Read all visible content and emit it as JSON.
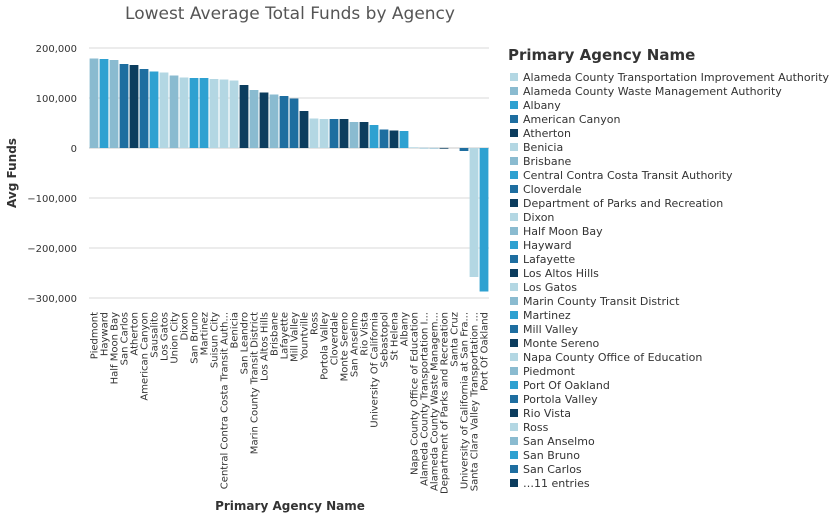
{
  "chart_data": {
    "type": "bar",
    "title": "Lowest Average Total Funds by Agency",
    "xlabel": "Primary Agency Name",
    "ylabel": "Avg Funds",
    "ylim": [
      -300000,
      200000
    ],
    "yticks": [
      200000,
      100000,
      0,
      -100000,
      -200000,
      -300000
    ],
    "ytick_labels": [
      "200,000",
      "100,000",
      "0",
      "−100,000",
      "−200,000",
      "−300,000"
    ],
    "grid": true,
    "categories": [
      "Piedmont",
      "Hayward",
      "Half Moon Bay",
      "San Carlos",
      "Atherton",
      "American Canyon",
      "Sausalito",
      "Los Gatos",
      "Union City",
      "Dixon",
      "San Bruno",
      "Martinez",
      "Suisun City",
      "Central Contra Costa Transit Auth...",
      "Benicia",
      "San Leandro",
      "Marin County Transit District",
      "Los Altos Hills",
      "Brisbane",
      "Lafayette",
      "Mill Valley",
      "Yountville",
      "Ross",
      "Portola Valley",
      "Cloverdale",
      "Monte Sereno",
      "San Anselmo",
      "Rio Vista",
      "University Of California",
      "Sebastopol",
      "St Helena",
      "Albany",
      "Napa County Office of Education",
      "Alameda County Transportation I...",
      "Alameda County Waste Managem...",
      "Department of Parks and Recreation",
      "Santa Cruz",
      "University of California at San Fra...",
      "Santa Clara Valley Transportation ...",
      "Port Of Oakland"
    ],
    "values": [
      179000,
      178000,
      176000,
      168000,
      166000,
      158000,
      153000,
      151000,
      145000,
      141000,
      140000,
      140000,
      138000,
      137000,
      135000,
      126000,
      116000,
      111000,
      107000,
      104000,
      99000,
      74000,
      59000,
      58000,
      58000,
      58000,
      52000,
      52000,
      46000,
      37000,
      35000,
      34000,
      1500,
      500,
      300,
      200,
      0,
      -6000,
      -258000,
      -287000
    ],
    "bar_colors": [
      "#8abbd0",
      "#2ea1d1",
      "#8abbd0",
      "#1e6ea0",
      "#0c3d5e",
      "#1e6ea0",
      "#2ea1d1",
      "#b3d7e3",
      "#8abbd0",
      "#b3d7e3",
      "#2ea1d1",
      "#2ea1d1",
      "#b3d7e3",
      "#b3d7e3",
      "#b3d7e3",
      "#0c3d5e",
      "#8abbd0",
      "#0c3d5e",
      "#8abbd0",
      "#1e6ea0",
      "#1e6ea0",
      "#0c3d5e",
      "#b3d7e3",
      "#b3d7e3",
      "#1e6ea0",
      "#0c3d5e",
      "#8abbd0",
      "#0c3d5e",
      "#2ea1d1",
      "#1e6ea0",
      "#0c3d5e",
      "#2ea1d1",
      "#b3d7e3",
      "#8abbd0",
      "#8abbd0",
      "#0c3d5e",
      "#b3d7e3",
      "#1e6ea0",
      "#b3d7e3",
      "#2ea1d1"
    ],
    "legend": {
      "title": "Primary Agency Name",
      "placement": "right",
      "items": [
        {
          "label": "Alameda County Transportation Improvement Authority",
          "color": "#b3d7e3"
        },
        {
          "label": "Alameda County Waste Management Authority",
          "color": "#8abbd0"
        },
        {
          "label": "Albany",
          "color": "#2ea1d1"
        },
        {
          "label": "American Canyon",
          "color": "#1e6ea0"
        },
        {
          "label": "Atherton",
          "color": "#0c3d5e"
        },
        {
          "label": "Benicia",
          "color": "#b3d7e3"
        },
        {
          "label": "Brisbane",
          "color": "#8abbd0"
        },
        {
          "label": "Central Contra Costa Transit Authority",
          "color": "#2ea1d1"
        },
        {
          "label": "Cloverdale",
          "color": "#1e6ea0"
        },
        {
          "label": "Department of Parks and Recreation",
          "color": "#0c3d5e"
        },
        {
          "label": "Dixon",
          "color": "#b3d7e3"
        },
        {
          "label": "Half Moon Bay",
          "color": "#8abbd0"
        },
        {
          "label": "Hayward",
          "color": "#2ea1d1"
        },
        {
          "label": "Lafayette",
          "color": "#1e6ea0"
        },
        {
          "label": "Los Altos Hills",
          "color": "#0c3d5e"
        },
        {
          "label": "Los Gatos",
          "color": "#b3d7e3"
        },
        {
          "label": "Marin County Transit District",
          "color": "#8abbd0"
        },
        {
          "label": "Martinez",
          "color": "#2ea1d1"
        },
        {
          "label": "Mill Valley",
          "color": "#1e6ea0"
        },
        {
          "label": "Monte Sereno",
          "color": "#0c3d5e"
        },
        {
          "label": "Napa County Office of Education",
          "color": "#b3d7e3"
        },
        {
          "label": "Piedmont",
          "color": "#8abbd0"
        },
        {
          "label": "Port Of Oakland",
          "color": "#2ea1d1"
        },
        {
          "label": "Portola Valley",
          "color": "#1e6ea0"
        },
        {
          "label": "Rio Vista",
          "color": "#0c3d5e"
        },
        {
          "label": "Ross",
          "color": "#b3d7e3"
        },
        {
          "label": "San Anselmo",
          "color": "#8abbd0"
        },
        {
          "label": "San Bruno",
          "color": "#2ea1d1"
        },
        {
          "label": "San Carlos",
          "color": "#1e6ea0"
        },
        {
          "label": "…11 entries",
          "color": "#0c3d5e"
        }
      ]
    }
  }
}
